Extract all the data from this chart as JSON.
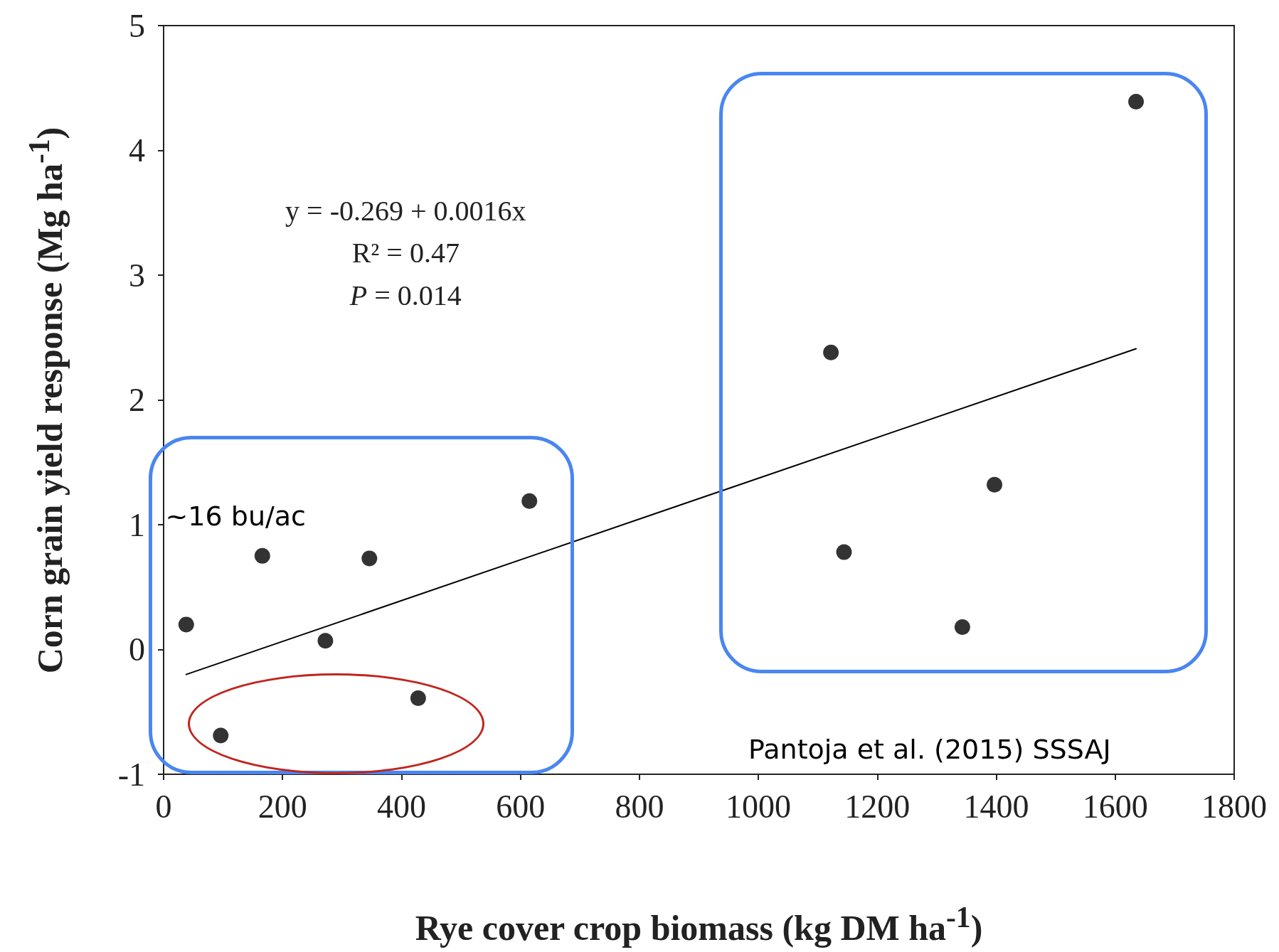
{
  "chart_data": {
    "type": "scatter",
    "xlabel": "Rye cover crop biomass (kg DM ha$^{-1}$)",
    "ylabel": "Corn grain yield response (Mg ha$^{-1}$)",
    "annotations": [
      "y = -0.269 + 0.0016x",
      "R² = 0.47",
      "P = 0.014",
      "~16 bu/ac",
      "Pantoja et al. (2015) SSSAJ"
    ],
    "series": [
      {
        "marker": "circle",
        "color": "#000000",
        "x": [
          38,
          96,
          166,
          272,
          346,
          428,
          615,
          1122,
          1144,
          1343,
          1397,
          1635
        ],
        "values": [
          0.2,
          -0.69,
          0.75,
          0.07,
          0.73,
          -0.39,
          1.19,
          2.38,
          0.78,
          0.18,
          1.32,
          4.39
        ]
      },
      {
        "type": "line",
        "marker": "none",
        "line_style": "solid",
        "color": "#000000",
        "x": [
          38,
          1635
        ],
        "values": [
          -0.2,
          2.41
        ]
      }
    ],
    "xlim": [
      0,
      1800
    ],
    "xticks": [
      0,
      200,
      400,
      600,
      800,
      1000,
      1200,
      1400,
      1600,
      1800
    ],
    "ylim": [
      -1,
      5
    ],
    "yticks": [
      -1,
      0,
      1,
      2,
      3,
      4,
      5
    ],
    "grid": false
  }
}
